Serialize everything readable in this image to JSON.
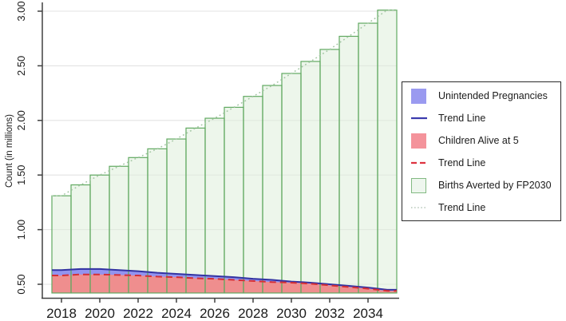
{
  "page": {
    "background": "#ffffff"
  },
  "chart_data": {
    "type": "bar",
    "title": "",
    "xlabel": "",
    "ylabel": "Count (in millions)",
    "x": [
      2018,
      2019,
      2020,
      2021,
      2022,
      2023,
      2024,
      2025,
      2026,
      2027,
      2028,
      2029,
      2030,
      2031,
      2032,
      2033,
      2034,
      2035
    ],
    "x_tick_labels": [
      "2018",
      "2020",
      "2022",
      "2024",
      "2026",
      "2028",
      "2030",
      "2032",
      "2034"
    ],
    "y_ticks": [
      0.5,
      1.0,
      1.5,
      2.0,
      2.5,
      3.0
    ],
    "y_tick_labels": [
      "0.50",
      "1.00",
      "1.50",
      "2.00",
      "2.50",
      "3.00"
    ],
    "ylim": [
      0.42,
      3.05
    ],
    "bar_baseline": 0.42,
    "grid": "horizontal",
    "legend_position": "right",
    "series": [
      {
        "name": "Births Averted by FP2030",
        "type": "bar",
        "values": [
          1.31,
          1.41,
          1.5,
          1.58,
          1.66,
          1.74,
          1.83,
          1.93,
          2.02,
          2.12,
          2.22,
          2.32,
          2.43,
          2.54,
          2.65,
          2.77,
          2.89,
          3.01
        ],
        "trend_line": "dotted"
      },
      {
        "name": "Unintended Pregnancies",
        "type": "area",
        "values": [
          0.63,
          0.64,
          0.64,
          0.63,
          0.62,
          0.605,
          0.595,
          0.585,
          0.575,
          0.565,
          0.55,
          0.54,
          0.525,
          0.515,
          0.5,
          0.485,
          0.47,
          0.45
        ],
        "trend_line": "solid"
      },
      {
        "name": "Children Alive at 5",
        "type": "area",
        "values": [
          0.58,
          0.59,
          0.59,
          0.585,
          0.58,
          0.57,
          0.565,
          0.555,
          0.55,
          0.54,
          0.53,
          0.52,
          0.515,
          0.505,
          0.49,
          0.475,
          0.46,
          0.44
        ],
        "trend_line": "dashed"
      }
    ]
  },
  "legend": {
    "items": [
      {
        "label": "Unintended Pregnancies",
        "swatch": "blue-square"
      },
      {
        "label": "Trend Line",
        "swatch": "blue-solid-line"
      },
      {
        "label": "Children Alive at 5",
        "swatch": "red-square"
      },
      {
        "label": "Trend Line",
        "swatch": "red-dashed-line"
      },
      {
        "label": "Births Averted by FP2030",
        "swatch": "green-outlined-square"
      },
      {
        "label": "Trend Line",
        "swatch": "green-dotted-line"
      }
    ]
  },
  "colors": {
    "bar_fill": "#dfeedb",
    "bar_stroke": "#61a961",
    "blue_area": "#9393ef",
    "red_area": "#ef8e8e",
    "blue_line": "#3333a2",
    "red_line": "#d42f35",
    "dotted_line": "#a3c6a3",
    "grid_line": "#e3e3e3",
    "axis": "#404040",
    "text": "#1a1a1a",
    "legend_border": "#2b2b2b"
  }
}
